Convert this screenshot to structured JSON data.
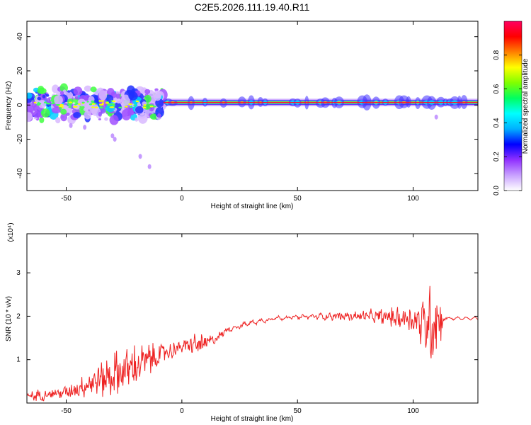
{
  "chart_data": [
    {
      "type": "heatmap",
      "title": "C2E5.2026.111.19.40.R11",
      "xlabel": "Height of straight line (km)",
      "ylabel": "Frequency (Hz)",
      "xlim": [
        -67,
        128
      ],
      "ylim": [
        -50,
        49
      ],
      "xticks": [
        -50,
        0,
        50,
        100
      ],
      "yticks": [
        -40,
        -20,
        0,
        20,
        40
      ],
      "colorbar": {
        "label": "Normalized spectral amplitude",
        "range": [
          0.0,
          1.0
        ],
        "ticks": [
          "0.0",
          "0.2",
          "0.4",
          "0.6",
          "0.8"
        ],
        "colormap": [
          "#ffffff",
          "#c8a0ff",
          "#9030ff",
          "#0000ff",
          "#00b0ff",
          "#00ffff",
          "#00ff60",
          "#80ff00",
          "#ffff00",
          "#ff8000",
          "#ff0000",
          "#ff0060"
        ]
      },
      "ridge": {
        "frequency_hz": 1.5,
        "x_start": -12,
        "x_end": 128
      },
      "noisy_segment": {
        "x_start": -67,
        "x_end": -12,
        "frequency_range_hz": [
          -8,
          6
        ]
      },
      "outliers": [
        {
          "x": -30,
          "y": -18
        },
        {
          "x": -29,
          "y": -20
        },
        {
          "x": -18,
          "y": -30
        },
        {
          "x": -14,
          "y": -36
        },
        {
          "x": -48,
          "y": -12
        },
        {
          "x": -42,
          "y": -13
        },
        {
          "x": 110,
          "y": -7
        }
      ],
      "grid": false
    },
    {
      "type": "line",
      "xlabel": "Height of straight line (km)",
      "ylabel": "SNR (10 * v/v)",
      "multiplier": "(x10⁴)",
      "xlim": [
        -67,
        128
      ],
      "ylim": [
        0,
        3.9
      ],
      "xticks": [
        -50,
        0,
        50,
        100
      ],
      "yticks": [
        1,
        2,
        3
      ],
      "color": "#ee2222",
      "envelope": {
        "x": [
          -67,
          -50,
          -40,
          -30,
          -20,
          -12,
          -5,
          0,
          5,
          10,
          15,
          20,
          30,
          40,
          50,
          60,
          70,
          80,
          90,
          100,
          105,
          108,
          110,
          112,
          113,
          120,
          128
        ],
        "y": [
          0.15,
          0.25,
          0.45,
          0.65,
          0.85,
          1.05,
          1.2,
          1.3,
          1.35,
          1.35,
          1.5,
          1.7,
          1.85,
          1.95,
          1.98,
          2.0,
          2.0,
          2.0,
          1.98,
          1.95,
          1.8,
          1.9,
          2.0,
          1.85,
          1.95,
          1.95,
          1.95
        ],
        "noise": [
          0.12,
          0.15,
          0.35,
          0.6,
          0.6,
          0.4,
          0.25,
          0.18,
          0.3,
          0.25,
          0.12,
          0.06,
          0.05,
          0.04,
          0.04,
          0.07,
          0.12,
          0.15,
          0.25,
          0.4,
          0.85,
          1.3,
          1.3,
          0.5,
          0.05,
          0.01,
          0.01
        ]
      },
      "grid": false
    }
  ]
}
